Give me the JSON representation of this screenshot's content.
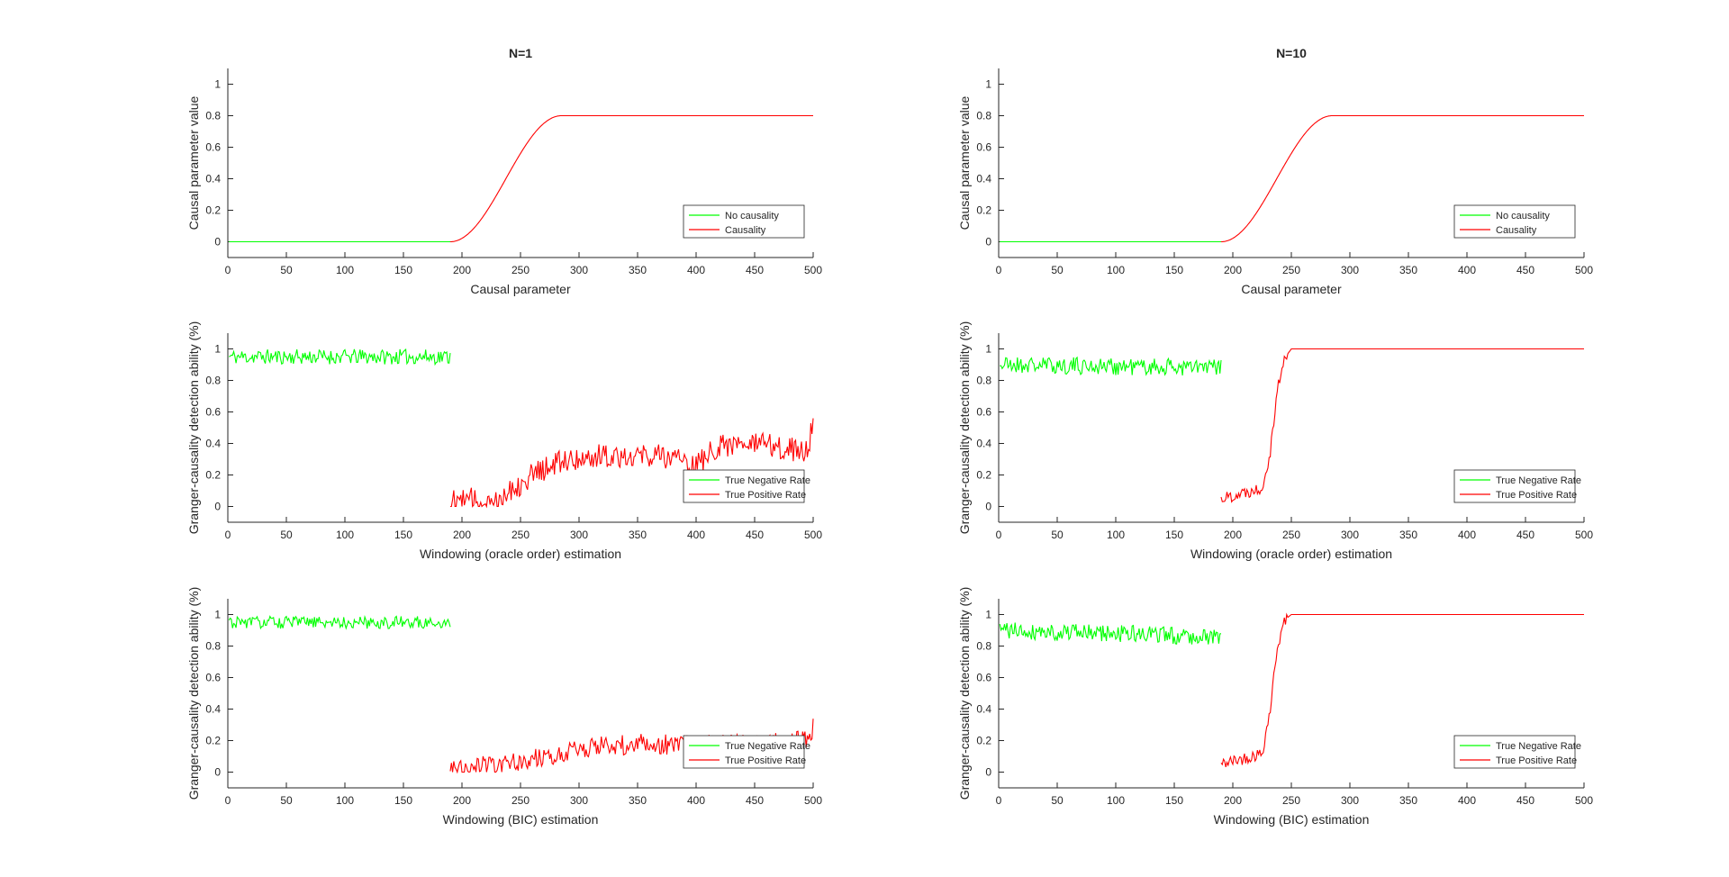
{
  "figure": {
    "background": "#ffffff"
  },
  "colors": {
    "green": "#00ff00",
    "red": "#ff0000",
    "axis": "#262626",
    "legend_border": "#262626"
  },
  "chart_data": [
    {
      "id": "n1-causal",
      "type": "line",
      "title": "N=1",
      "xlabel": "Causal parameter",
      "ylabel": "Causal parameter value",
      "xlim": [
        0,
        500
      ],
      "ylim": [
        -0.1,
        1.1
      ],
      "xticks": [
        "0",
        "50",
        "100",
        "150",
        "200",
        "250",
        "300",
        "350",
        "400",
        "450",
        "500"
      ],
      "yticks": [
        "0",
        "0.2",
        "0.4",
        "0.6",
        "0.8",
        "1"
      ],
      "grid": false,
      "legend_position": "lower-right",
      "series": [
        {
          "name": "No causality",
          "color": "#00ff00",
          "kind": "const",
          "x_range": [
            1,
            190
          ],
          "value": 0
        },
        {
          "name": "Causality",
          "color": "#ff0000",
          "kind": "sigmoid",
          "x_range": [
            190,
            500
          ],
          "ramp": [
            190,
            285
          ],
          "value": 0.8
        }
      ]
    },
    {
      "id": "n10-causal",
      "type": "line",
      "title": "N=10",
      "xlabel": "Causal parameter",
      "ylabel": "Causal parameter value",
      "xlim": [
        0,
        500
      ],
      "ylim": [
        -0.1,
        1.1
      ],
      "xticks": [
        "0",
        "50",
        "100",
        "150",
        "200",
        "250",
        "300",
        "350",
        "400",
        "450",
        "500"
      ],
      "yticks": [
        "0",
        "0.2",
        "0.4",
        "0.6",
        "0.8",
        "1"
      ],
      "grid": false,
      "legend_position": "lower-right",
      "series": [
        {
          "name": "No causality",
          "color": "#00ff00",
          "kind": "const",
          "x_range": [
            1,
            190
          ],
          "value": 0
        },
        {
          "name": "Causality",
          "color": "#ff0000",
          "kind": "sigmoid",
          "x_range": [
            190,
            500
          ],
          "ramp": [
            190,
            285
          ],
          "value": 0.8
        }
      ]
    },
    {
      "id": "n1-oracle",
      "type": "line",
      "title": "",
      "xlabel": "Windowing (oracle order) estimation",
      "ylabel": "Granger-causality detection ability (%)",
      "xlim": [
        0,
        500
      ],
      "ylim": [
        -0.1,
        1.1
      ],
      "xticks": [
        "0",
        "50",
        "100",
        "150",
        "200",
        "250",
        "300",
        "350",
        "400",
        "450",
        "500"
      ],
      "yticks": [
        "0",
        "0.2",
        "0.4",
        "0.6",
        "0.8",
        "1"
      ],
      "grid": false,
      "legend_position": "lower-right",
      "series": [
        {
          "name": "True Negative Rate",
          "color": "#00ff00",
          "kind": "noisy",
          "x_range": [
            1,
            190
          ],
          "knots": [
            [
              1,
              0.95
            ],
            [
              190,
              0.95
            ]
          ],
          "noise": 0.03,
          "seed": 11
        },
        {
          "name": "True Positive Rate",
          "color": "#ff0000",
          "kind": "noisy",
          "x_range": [
            190,
            500
          ],
          "knots": [
            [
              190,
              0.03
            ],
            [
              230,
              0.05
            ],
            [
              260,
              0.2
            ],
            [
              290,
              0.3
            ],
            [
              330,
              0.33
            ],
            [
              380,
              0.32
            ],
            [
              400,
              0.25
            ],
            [
              420,
              0.4
            ],
            [
              470,
              0.38
            ],
            [
              495,
              0.35
            ],
            [
              500,
              0.55
            ]
          ],
          "noise": 0.05,
          "seed": 12
        }
      ]
    },
    {
      "id": "n10-oracle",
      "type": "line",
      "title": "",
      "xlabel": "Windowing (oracle order) estimation",
      "ylabel": "Granger-causality detection ability (%)",
      "xlim": [
        0,
        500
      ],
      "ylim": [
        -0.1,
        1.1
      ],
      "xticks": [
        "0",
        "50",
        "100",
        "150",
        "200",
        "250",
        "300",
        "350",
        "400",
        "450",
        "500"
      ],
      "yticks": [
        "0",
        "0.2",
        "0.4",
        "0.6",
        "0.8",
        "1"
      ],
      "grid": false,
      "legend_position": "lower-right",
      "series": [
        {
          "name": "True Negative Rate",
          "color": "#00ff00",
          "kind": "noisy",
          "x_range": [
            1,
            190
          ],
          "knots": [
            [
              1,
              0.9
            ],
            [
              190,
              0.88
            ]
          ],
          "noise": 0.035,
          "seed": 21
        },
        {
          "name": "True Positive Rate",
          "color": "#ff0000",
          "kind": "noisy",
          "x_range": [
            190,
            500
          ],
          "knots": [
            [
              190,
              0.05
            ],
            [
              225,
              0.12
            ],
            [
              232,
              0.35
            ],
            [
              238,
              0.75
            ],
            [
              245,
              0.95
            ],
            [
              250,
              1.0
            ],
            [
              500,
              1.0
            ]
          ],
          "noise": 0.025,
          "noise_cap_x": 247,
          "seed": 22
        }
      ]
    },
    {
      "id": "n1-bic",
      "type": "line",
      "title": "",
      "xlabel": "Windowing (BIC) estimation",
      "ylabel": "Granger-causality detection ability (%)",
      "xlim": [
        0,
        500
      ],
      "ylim": [
        -0.1,
        1.1
      ],
      "xticks": [
        "0",
        "50",
        "100",
        "150",
        "200",
        "250",
        "300",
        "350",
        "400",
        "450",
        "500"
      ],
      "yticks": [
        "0",
        "0.2",
        "0.4",
        "0.6",
        "0.8",
        "1"
      ],
      "grid": false,
      "legend_position": "lower-right",
      "series": [
        {
          "name": "True Negative Rate",
          "color": "#00ff00",
          "kind": "noisy",
          "x_range": [
            1,
            190
          ],
          "knots": [
            [
              1,
              0.95
            ],
            [
              190,
              0.95
            ]
          ],
          "noise": 0.025,
          "seed": 31
        },
        {
          "name": "True Positive Rate",
          "color": "#ff0000",
          "kind": "noisy",
          "x_range": [
            190,
            500
          ],
          "knots": [
            [
              190,
              0.02
            ],
            [
              250,
              0.06
            ],
            [
              300,
              0.15
            ],
            [
              350,
              0.18
            ],
            [
              400,
              0.17
            ],
            [
              450,
              0.18
            ],
            [
              495,
              0.2
            ],
            [
              500,
              0.28
            ]
          ],
          "noise": 0.04,
          "seed": 32
        }
      ]
    },
    {
      "id": "n10-bic",
      "type": "line",
      "title": "",
      "xlabel": "Windowing (BIC) estimation",
      "ylabel": "Granger-causality detection ability (%)",
      "xlim": [
        0,
        500
      ],
      "ylim": [
        -0.1,
        1.1
      ],
      "xticks": [
        "0",
        "50",
        "100",
        "150",
        "200",
        "250",
        "300",
        "350",
        "400",
        "450",
        "500"
      ],
      "yticks": [
        "0",
        "0.2",
        "0.4",
        "0.6",
        "0.8",
        "1"
      ],
      "grid": false,
      "legend_position": "lower-right",
      "series": [
        {
          "name": "True Negative Rate",
          "color": "#00ff00",
          "kind": "noisy",
          "x_range": [
            1,
            190
          ],
          "knots": [
            [
              1,
              0.9
            ],
            [
              190,
              0.86
            ]
          ],
          "noise": 0.035,
          "seed": 41
        },
        {
          "name": "True Positive Rate",
          "color": "#ff0000",
          "kind": "noisy",
          "x_range": [
            190,
            500
          ],
          "knots": [
            [
              190,
              0.05
            ],
            [
              225,
              0.12
            ],
            [
              232,
              0.4
            ],
            [
              238,
              0.8
            ],
            [
              245,
              0.97
            ],
            [
              250,
              1.0
            ],
            [
              500,
              1.0
            ]
          ],
          "noise": 0.025,
          "noise_cap_x": 247,
          "seed": 42
        }
      ]
    }
  ]
}
